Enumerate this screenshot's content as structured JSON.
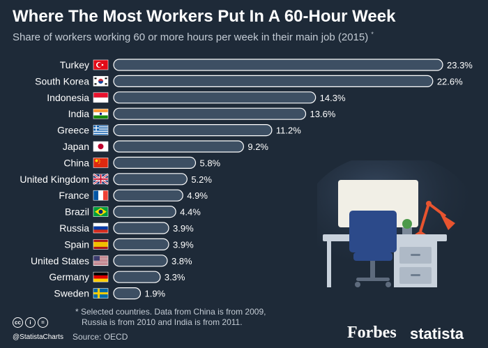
{
  "header": {
    "title": "Where The Most Workers Put In A 60-Hour Week",
    "subtitle": "Share of workers working 60 or more hours per week in their main job (2015)",
    "subtitle_mark": "*"
  },
  "chart_data": {
    "type": "bar",
    "orientation": "horizontal",
    "title": "Where The Most Workers Put In A 60-Hour Week",
    "subtitle": "Share of workers working 60 or more hours per week in their main job (2015)*",
    "categories": [
      "Turkey",
      "South Korea",
      "Indonesia",
      "India",
      "Greece",
      "Japan",
      "China",
      "United Kingdom",
      "France",
      "Brazil",
      "Russia",
      "Spain",
      "United States",
      "Germany",
      "Sweden"
    ],
    "values": [
      23.3,
      22.6,
      14.3,
      13.6,
      11.2,
      9.2,
      5.8,
      5.2,
      4.9,
      4.4,
      3.9,
      3.9,
      3.8,
      3.3,
      1.9
    ],
    "value_labels": [
      "23.3%",
      "22.6%",
      "14.3%",
      "13.6%",
      "11.2%",
      "9.2%",
      "5.8%",
      "5.2%",
      "4.9%",
      "4.4%",
      "3.9%",
      "3.9%",
      "3.8%",
      "3.3%",
      "1.9%"
    ],
    "unit": "%",
    "xlim": [
      0,
      23.3
    ],
    "grid": false,
    "colors": {
      "bar": "#3d4f63",
      "bar_stroke": "#ffffff",
      "text": "#ffffff"
    }
  },
  "flag_icons": [
    "flag-turkey",
    "flag-south-korea",
    "flag-indonesia",
    "flag-india",
    "flag-greece",
    "flag-japan",
    "flag-china",
    "flag-united-kingdom",
    "flag-france",
    "flag-brazil",
    "flag-russia",
    "flag-spain",
    "flag-united-states",
    "flag-germany",
    "flag-sweden"
  ],
  "footer": {
    "footnote_line1": "* Selected countries. Data from China is from 2009,",
    "footnote_line2": "Russia is from 2010 and India is from 2011.",
    "handle": "@StatistaCharts",
    "source": "Source: OECD",
    "cc_icons": [
      "cc",
      "by",
      "nd"
    ],
    "cc_labels": [
      "cc",
      "i",
      "="
    ],
    "brand_forbes": "Forbes",
    "brand_statista": "statista"
  },
  "illustration": {
    "icon": "desk-workstation-icon"
  },
  "colors": {
    "background": "#1e2a38",
    "subtitle": "#c3cbd4",
    "lamp": "#e8542f",
    "screen": "#f1efe6",
    "chair": "#2c4a8a"
  }
}
